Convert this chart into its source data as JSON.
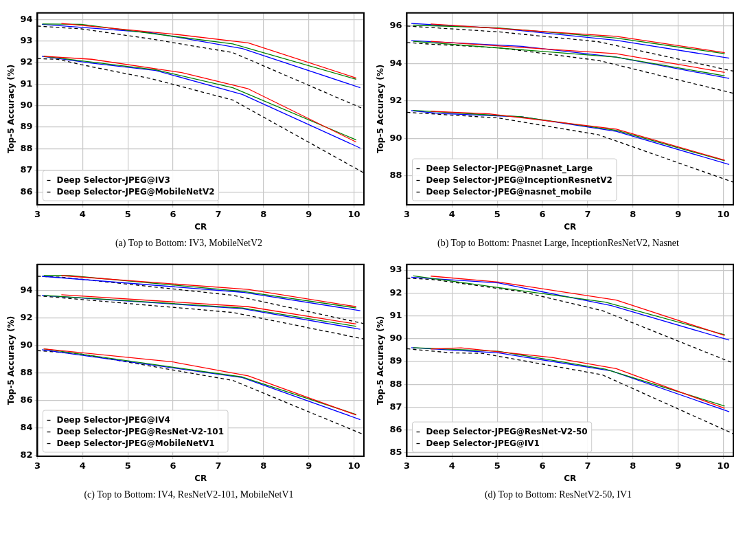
{
  "chart_data": [
    {
      "type": "line",
      "title": "(a) Top to Bottom: IV3, MobileNetV2",
      "xlabel": "CR",
      "ylabel": "Top-5 Accuracy (%)",
      "xlim": [
        3,
        10.22
      ],
      "xticks": [
        3,
        4,
        5,
        6,
        7,
        8,
        9,
        10
      ],
      "ylim": [
        85.4,
        94.3
      ],
      "yticks": [
        86,
        87,
        88,
        89,
        90,
        91,
        92,
        93,
        94
      ],
      "grid": true,
      "legend": "bottom left",
      "series": [
        {
          "color": "#ff0000",
          "x": [
            3.53,
            6.0,
            7.66,
            10.05
          ],
          "values": [
            93.81,
            93.32,
            92.91,
            91.28
          ]
        },
        {
          "color": "#008000",
          "x": [
            3.11,
            3.97,
            7.32,
            10.05
          ],
          "values": [
            93.79,
            93.77,
            92.86,
            91.22
          ]
        },
        {
          "color": "#0000ff",
          "x": [
            3.1,
            5.52,
            7.53,
            10.14
          ],
          "values": [
            93.77,
            93.38,
            92.65,
            90.83
          ]
        },
        {
          "name": "Deep Selector-JPEG@IV3",
          "color": "#000000",
          "line_style": "dashed",
          "x": [
            3,
            3.97,
            5.52,
            7.32,
            10.22
          ],
          "values": [
            93.69,
            93.56,
            93.09,
            92.46,
            89.84
          ]
        },
        {
          "color": "#ff0000",
          "x": [
            3.14,
            4.2,
            6.19,
            7.66,
            10.05
          ],
          "values": [
            92.29,
            92.15,
            91.53,
            90.78,
            88.31
          ]
        },
        {
          "color": "#008000",
          "x": [
            3.14,
            5.62,
            7.32,
            10.05
          ],
          "values": [
            92.29,
            91.66,
            90.83,
            88.41
          ]
        },
        {
          "color": "#0000ff",
          "x": [
            3.1,
            4.2,
            5.62,
            7.53,
            10.14
          ],
          "values": [
            92.29,
            91.97,
            91.63,
            90.52,
            88.03
          ]
        },
        {
          "name": "Deep Selector-JPEG@MobileNetV2",
          "color": "#000000",
          "line_style": "dashed",
          "x": [
            3,
            3.45,
            3.97,
            5.52,
            7.32,
            10.22
          ],
          "values": [
            92.18,
            92.15,
            91.9,
            91.25,
            90.26,
            86.88
          ]
        }
      ]
    },
    {
      "type": "line",
      "title": "(b) Top to Bottom: Pnasnet Large, InceptionResNetV2, Nasnet",
      "xlabel": "CR",
      "ylabel": "Top-5 Accuracy (%)",
      "xlim": [
        3,
        10.22
      ],
      "xticks": [
        3,
        4,
        5,
        6,
        7,
        8,
        9,
        10
      ],
      "ylim": [
        86.45,
        96.7
      ],
      "yticks": [
        88,
        90,
        92,
        94,
        96
      ],
      "grid": true,
      "legend": "bottom left",
      "series": [
        {
          "color": "#ff0000",
          "x": [
            3.53,
            7.63,
            10.03
          ],
          "values": [
            96.11,
            95.45,
            94.58
          ]
        },
        {
          "color": "#008000",
          "x": [
            3.14,
            5.02,
            7.63,
            10.03
          ],
          "values": [
            96.05,
            95.9,
            95.36,
            94.52
          ]
        },
        {
          "color": "#0000ff",
          "x": [
            3.1,
            5.02,
            7.63,
            10.13
          ],
          "values": [
            96.14,
            95.88,
            95.24,
            94.28
          ]
        },
        {
          "name": "Deep Selector-JPEG@Pnasnet_Large",
          "color": "#000000",
          "line_style": "dashed",
          "x": [
            3,
            5.02,
            7.24,
            10.22
          ],
          "values": [
            96.0,
            95.69,
            95.16,
            93.59
          ]
        },
        {
          "color": "#ff0000",
          "x": [
            3.53,
            7.63,
            10.03
          ],
          "values": [
            95.18,
            94.52,
            93.52
          ]
        },
        {
          "color": "#008000",
          "x": [
            3.14,
            7.63,
            10.03
          ],
          "values": [
            95.18,
            94.34,
            93.34
          ]
        },
        {
          "color": "#0000ff",
          "x": [
            3.1,
            5.54,
            7.63,
            10.13
          ],
          "values": [
            95.22,
            94.92,
            94.34,
            93.2
          ]
        },
        {
          "name": "Deep Selector-JPEG@InceptionResnetV2",
          "color": "#000000",
          "line_style": "dashed",
          "x": [
            3,
            3.47,
            5.02,
            7.24,
            10.22
          ],
          "values": [
            95.12,
            95.04,
            94.84,
            94.16,
            92.41
          ]
        },
        {
          "color": "#ff0000",
          "x": [
            3.53,
            4.82,
            7.63,
            10.03
          ],
          "values": [
            91.45,
            91.31,
            90.49,
            88.83
          ]
        },
        {
          "color": "#008000",
          "x": [
            3.14,
            5.54,
            7.63,
            10.03
          ],
          "values": [
            91.49,
            91.15,
            90.43,
            88.8
          ]
        },
        {
          "color": "#0000ff",
          "x": [
            3.1,
            3.73,
            5.54,
            7.63,
            10.13
          ],
          "values": [
            91.48,
            91.33,
            91.15,
            90.37,
            88.6
          ]
        },
        {
          "name": "Deep Selector-JPEG@nasnet_mobile",
          "color": "#000000",
          "line_style": "dashed",
          "x": [
            3,
            5.02,
            7.24,
            10.22
          ],
          "values": [
            91.39,
            91.09,
            90.19,
            87.66
          ]
        }
      ]
    },
    {
      "type": "line",
      "title": "(c) Top to Bottom: IV4, ResNetV2-101, MobileNetV1",
      "xlabel": "CR",
      "ylabel": "Top-5 Accuracy (%)",
      "xlim": [
        3,
        10.22
      ],
      "xticks": [
        3,
        4,
        5,
        6,
        7,
        8,
        9,
        10
      ],
      "ylim": [
        81.95,
        95.9
      ],
      "yticks": [
        82,
        84,
        86,
        88,
        90,
        92,
        94
      ],
      "grid": true,
      "legend": "bottom left",
      "series": [
        {
          "color": "#ff0000",
          "x": [
            3.53,
            7.66,
            10.05
          ],
          "values": [
            95.09,
            94.08,
            92.83
          ]
        },
        {
          "color": "#008000",
          "x": [
            3.14,
            3.71,
            7.53,
            10.05
          ],
          "values": [
            95.09,
            95.09,
            93.95,
            92.74
          ]
        },
        {
          "color": "#0000ff",
          "x": [
            3.1,
            7.53,
            10.14
          ],
          "values": [
            95.04,
            93.88,
            92.54
          ]
        },
        {
          "name": "Deep Selector-JPEG@IV4",
          "color": "#000000",
          "line_style": "dashed",
          "x": [
            3,
            3.55,
            7.32,
            10.22
          ],
          "values": [
            95.04,
            94.97,
            93.66,
            91.6
          ]
        },
        {
          "color": "#ff0000",
          "x": [
            3.53,
            7.66,
            10.05
          ],
          "values": [
            93.7,
            92.83,
            91.57
          ]
        },
        {
          "color": "#008000",
          "x": [
            3.14,
            7.53,
            10.05
          ],
          "values": [
            93.65,
            92.74,
            91.4
          ]
        },
        {
          "color": "#0000ff",
          "x": [
            3.1,
            7.53,
            10.14
          ],
          "values": [
            93.65,
            92.69,
            91.19
          ]
        },
        {
          "name": "Deep Selector-JPEG@ResNet-V2-101",
          "color": "#000000",
          "line_style": "dashed",
          "x": [
            3,
            7.32,
            10.22
          ],
          "values": [
            93.63,
            92.41,
            90.48
          ]
        },
        {
          "color": "#ff0000",
          "x": [
            3.14,
            6.0,
            7.66,
            10.05
          ],
          "values": [
            89.76,
            88.81,
            87.8,
            84.95
          ]
        },
        {
          "color": "#008000",
          "x": [
            3.14,
            7.53,
            10.05
          ],
          "values": [
            89.76,
            87.72,
            84.99
          ]
        },
        {
          "color": "#0000ff",
          "x": [
            3.1,
            7.53,
            10.14
          ],
          "values": [
            89.7,
            87.68,
            84.62
          ]
        },
        {
          "name": "Deep Selector-JPEG@MobileNetV1",
          "color": "#000000",
          "line_style": "dashed",
          "x": [
            3,
            3.97,
            7.32,
            10.22
          ],
          "values": [
            89.64,
            89.39,
            87.47,
            83.53
          ]
        }
      ]
    },
    {
      "type": "line",
      "title": "(d) Top to Bottom: ResNetV2-50, IV1",
      "xlabel": "CR",
      "ylabel": "Top-5 Accuracy (%)",
      "xlim": [
        3,
        10.22
      ],
      "xticks": [
        3,
        4,
        5,
        6,
        7,
        8,
        9,
        10
      ],
      "ylim": [
        84.85,
        93.25
      ],
      "yticks": [
        85,
        86,
        87,
        88,
        89,
        90,
        91,
        92,
        93
      ],
      "grid": true,
      "legend": "bottom left",
      "series": [
        {
          "color": "#ff0000",
          "x": [
            3.53,
            5.02,
            7.63,
            10.03
          ],
          "values": [
            92.74,
            92.48,
            91.69,
            90.14
          ]
        },
        {
          "color": "#008000",
          "x": [
            3.14,
            7.39,
            10.03
          ],
          "values": [
            92.75,
            91.6,
            90.17
          ]
        },
        {
          "color": "#0000ff",
          "x": [
            3.1,
            5.02,
            7.52,
            10.13
          ],
          "values": [
            92.69,
            92.44,
            91.45,
            89.94
          ]
        },
        {
          "name": "Deep Selector-JPEG@ResNet-V2-50",
          "color": "#000000",
          "line_style": "dashed",
          "x": [
            3,
            3.58,
            5.54,
            7.32,
            10.22
          ],
          "values": [
            92.65,
            92.59,
            92.06,
            91.23,
            88.93
          ]
        },
        {
          "color": "#ff0000",
          "x": [
            3.53,
            4.2,
            6.21,
            7.63,
            10.03
          ],
          "values": [
            89.55,
            89.6,
            89.18,
            88.69,
            86.95
          ]
        },
        {
          "color": "#008000",
          "x": [
            3.14,
            5.02,
            7.39,
            10.03
          ],
          "values": [
            89.61,
            89.45,
            88.67,
            87.05
          ]
        },
        {
          "color": "#0000ff",
          "x": [
            3.1,
            5.02,
            7.52,
            10.13
          ],
          "values": [
            89.61,
            89.38,
            88.59,
            86.8
          ]
        },
        {
          "name": "Deep Selector-JPEG@IV1",
          "color": "#000000",
          "line_style": "dashed",
          "x": [
            3,
            3.99,
            4.66,
            7.32,
            10.22
          ],
          "values": [
            89.56,
            89.38,
            89.36,
            88.42,
            85.84
          ]
        }
      ]
    }
  ]
}
